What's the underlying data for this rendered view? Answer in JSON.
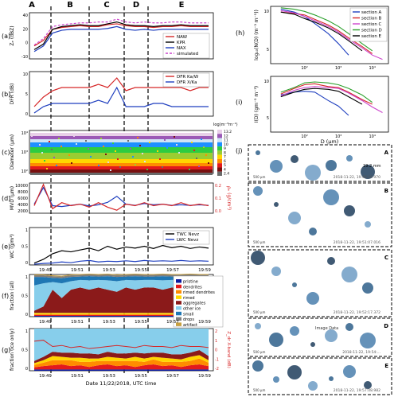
{
  "figure": {
    "section_letters": [
      "A",
      "B",
      "C",
      "D",
      "E"
    ],
    "xlabel": "Date 11/22/2018, UTC time",
    "x_ticks": [
      "19:49",
      "19:51",
      "19:53",
      "19:55",
      "19:57",
      "19:59"
    ],
    "d_label": "D (μm)",
    "photo_letters": [
      "A",
      "B",
      "C",
      "D",
      "E"
    ],
    "photo_times": [
      "2018-11-22, 19:48:29.970",
      "2018-11-22, 19:51:07.016",
      "2018-11-22, 19:52:17.372",
      "2018-11-22, 19:54:...",
      "2018-11-22, 19:57:08.982"
    ],
    "scale_label": "19.2\nmm",
    "scale_500": "500 μm",
    "image_data": "Image Data"
  },
  "chart_data": [
    {
      "panel": "(a)",
      "type": "line",
      "ylabel": "Zₑ (dBZ)",
      "yticks": [
        "40",
        "20",
        "0",
        "-10"
      ],
      "ylim": [
        -10,
        40
      ],
      "series": [
        {
          "name": "NAW",
          "color": "#d62728",
          "values": [
            4,
            10,
            22,
            24,
            25,
            26,
            25,
            25,
            27,
            28,
            26,
            25,
            25,
            24,
            25,
            25,
            26,
            25,
            25,
            25
          ]
        },
        {
          "name": "KPR",
          "color": "#000000",
          "values": [
            0,
            6,
            22,
            25,
            26,
            27,
            26,
            26,
            28,
            30,
            27,
            26,
            26,
            25,
            26,
            26,
            27,
            26,
            26,
            26
          ]
        },
        {
          "name": "NAX",
          "color": "#1f3fbf",
          "values": [
            -2,
            4,
            18,
            21,
            22,
            22,
            22,
            22,
            23,
            25,
            22,
            21,
            22,
            21,
            22,
            22,
            22,
            22,
            22,
            22
          ]
        },
        {
          "name": "simulated",
          "color": "#cc44cc",
          "values": [
            5,
            12,
            25,
            27,
            28,
            29,
            29,
            30,
            30,
            33,
            30,
            29,
            30,
            29,
            29,
            30,
            30,
            29,
            29,
            29
          ]
        }
      ]
    },
    {
      "panel": "(b)",
      "type": "line",
      "ylabel": "DFR (dB)",
      "yticks": [
        "10",
        "5",
        "0"
      ],
      "ylim": [
        0,
        14
      ],
      "series": [
        {
          "name": "DFR Ka/W",
          "color": "#d62728",
          "values": [
            3,
            6,
            8,
            9,
            9,
            9,
            9,
            10,
            9,
            12,
            8,
            9,
            9,
            9,
            9,
            9,
            9,
            8,
            9,
            9
          ]
        },
        {
          "name": "DFR X/Ka",
          "color": "#1f3fbf",
          "values": [
            1,
            3,
            4,
            4,
            4,
            4,
            4,
            5,
            4,
            9,
            3,
            3,
            3,
            4,
            4,
            3,
            3,
            3,
            3,
            3
          ]
        }
      ]
    },
    {
      "panel": "(c)",
      "type": "heatmap",
      "ylabel": "Diameter (μm)",
      "yticks": [
        "10⁴",
        "10³",
        "10²"
      ],
      "colorbar_label": "log(m⁻³m⁻¹)",
      "colorbar_ticks": [
        "13.2",
        "12",
        "11",
        "10",
        "9",
        "8",
        "7",
        "6",
        "5",
        "4",
        "2.4"
      ],
      "bands": [
        {
          "level": "13.2",
          "color": "#e8d0e8"
        },
        {
          "level": "12",
          "color": "#9b59b6"
        },
        {
          "level": "11",
          "color": "#d0e4f5"
        },
        {
          "level": "10",
          "color": "#1e90ff"
        },
        {
          "level": "9",
          "color": "#2ecc40"
        },
        {
          "level": "8",
          "color": "#9acd32"
        },
        {
          "level": "7",
          "color": "#ffd700"
        },
        {
          "level": "6",
          "color": "#ff8c00"
        },
        {
          "level": "5",
          "color": "#e31a1c"
        },
        {
          "level": "4",
          "color": "#7a1010"
        },
        {
          "level": "2.4",
          "color": "#6a6a6a"
        }
      ]
    },
    {
      "panel": "(d)",
      "type": "line",
      "ylabel": "MVD (μm)",
      "yticks": [
        "10000",
        "8000",
        "6000",
        "4000",
        "2000"
      ],
      "ylim": [
        0,
        10000
      ],
      "y2label": "ρₑ (g/cm³)",
      "y2ticks": [
        "0.2",
        "0.1",
        "0.0"
      ],
      "y2lim": [
        0,
        0.2
      ],
      "series": [
        {
          "name": "MVD",
          "color": "#1f3fbf",
          "axis": "left",
          "values": [
            3000,
            8500,
            2500,
            2200,
            2600,
            3000,
            2400,
            2800,
            3600,
            5600,
            3000,
            2600,
            3200,
            2800,
            3000,
            2600,
            2800,
            2600,
            2800,
            2600
          ]
        },
        {
          "name": "ρₑ",
          "color": "#d62728",
          "axis": "right",
          "values": [
            0.05,
            0.19,
            0.03,
            0.07,
            0.05,
            0.06,
            0.04,
            0.07,
            0.04,
            0.02,
            0.06,
            0.05,
            0.07,
            0.05,
            0.06,
            0.05,
            0.07,
            0.05,
            0.06,
            0.05
          ]
        }
      ]
    },
    {
      "panel": "(e)",
      "type": "line",
      "ylabel": "WC (g/m³)",
      "yticks": [
        "1",
        "0.5",
        "0"
      ],
      "ylim": [
        0,
        1
      ],
      "series": [
        {
          "name": "TWC Nevz",
          "color": "#000000",
          "values": [
            0.05,
            0.15,
            0.3,
            0.38,
            0.35,
            0.4,
            0.45,
            0.38,
            0.5,
            0.42,
            0.48,
            0.45,
            0.5,
            0.44,
            0.52,
            0.46,
            0.5,
            0.44,
            0.48,
            0.45
          ]
        },
        {
          "name": "LWC Nevz",
          "color": "#1f3fbf",
          "values": [
            0.02,
            0.04,
            0.05,
            0.08,
            0.06,
            0.1,
            0.12,
            0.08,
            0.1,
            0.09,
            0.11,
            0.09,
            0.12,
            0.1,
            0.11,
            0.1,
            0.12,
            0.1,
            0.11,
            0.1
          ]
        }
      ]
    },
    {
      "panel": "(f)",
      "type": "area",
      "ylabel": "fraction (all)",
      "yticks": [
        "1",
        "0.5",
        "0"
      ],
      "ylim": [
        0,
        1
      ],
      "categories": [
        "pristine",
        "dendrites",
        "rimed dendrites",
        "rimed",
        "aggregates",
        "other ice",
        "small",
        "drops",
        "artifact"
      ],
      "colors": [
        "#0a1aa0",
        "#e31a1c",
        "#ff8c00",
        "#ffd700",
        "#8b1a1a",
        "#87ceeb",
        "#1f77b4",
        "#7f7f7f",
        "#c8a040"
      ],
      "legend_position": "right"
    },
    {
      "panel": "(g)",
      "type": "area",
      "ylabel": "fraction (ice only)",
      "yticks": [
        "1",
        "0.5",
        "0"
      ],
      "ylim": [
        0,
        1
      ],
      "y2label": "Z_dr X-band (dB)",
      "y2ticks": [
        "2",
        "1",
        "0",
        "-1",
        "-2"
      ],
      "y2lim": [
        -2,
        2
      ],
      "zdr_color": "#d62728",
      "zdr_values": [
        0.8,
        0.9,
        0.3,
        0.4,
        0.2,
        0.3,
        0.1,
        0.2,
        0.3,
        0.4,
        0.3,
        0.2,
        0.4,
        0.3,
        0.3,
        0.2,
        0.4,
        0.3,
        0.3,
        0.2
      ]
    },
    {
      "panel": "(h)",
      "type": "line",
      "ylabel": "log₁₀(N(D) (m⁻³ m⁻¹))",
      "yticks": [
        "10",
        "5"
      ],
      "ylim": [
        4,
        12
      ],
      "x": [
        20,
        50,
        100,
        200,
        500,
        1000,
        2000,
        5000,
        10000,
        20000
      ],
      "xticks": [
        "10²",
        "10³",
        "10⁴"
      ],
      "series": [
        {
          "name": "section A",
          "color": "#1f3fbf",
          "values": [
            11.6,
            11.2,
            10.6,
            9.6,
            8.2,
            6.8,
            5.2,
            null,
            null,
            null
          ]
        },
        {
          "name": "section B",
          "color": "#d62728",
          "values": [
            11.2,
            11.0,
            10.8,
            10.2,
            9.4,
            8.6,
            7.6,
            6.4,
            5.4,
            null
          ]
        },
        {
          "name": "section C",
          "color": "#cc44cc",
          "values": [
            11.4,
            11.1,
            10.6,
            10.0,
            9.2,
            8.4,
            7.4,
            6.2,
            5.2,
            4.6
          ]
        },
        {
          "name": "section D",
          "color": "#2ca02c",
          "values": [
            11.8,
            11.6,
            11.3,
            10.8,
            10.0,
            9.2,
            8.2,
            6.8,
            5.8,
            null
          ]
        },
        {
          "name": "section E",
          "color": "#000000",
          "values": [
            11.2,
            10.9,
            10.3,
            9.8,
            9.0,
            8.2,
            7.2,
            5.8,
            null,
            null
          ]
        }
      ]
    },
    {
      "panel": "(i)",
      "type": "line",
      "ylabel": "I(D) (gm⁻³ m⁻³)",
      "yticks": [
        "10",
        "5"
      ],
      "ylim": [
        0,
        12
      ],
      "x": [
        20,
        50,
        100,
        200,
        500,
        1000,
        2000,
        5000,
        10000,
        20000
      ],
      "xticks": [
        "10²",
        "10³",
        "10⁴"
      ],
      "series": [
        {
          "name": "section A",
          "color": "#1f3fbf",
          "values": [
            8.0,
            8.6,
            8.8,
            8.6,
            6.8,
            5.6,
            3.6,
            null,
            null,
            null
          ]
        },
        {
          "name": "section B",
          "color": "#d62728",
          "values": [
            8.2,
            9.4,
            10.2,
            10.4,
            9.8,
            9.6,
            8.6,
            7.0,
            6.0,
            null
          ]
        },
        {
          "name": "section C",
          "color": "#cc44cc",
          "values": [
            7.8,
            9.0,
            9.6,
            9.8,
            9.6,
            9.4,
            8.4,
            6.8,
            5.4,
            4.2
          ]
        },
        {
          "name": "section D",
          "color": "#2ca02c",
          "values": [
            8.6,
            9.6,
            10.6,
            10.8,
            10.6,
            10.2,
            9.4,
            8.0,
            6.4,
            null
          ]
        },
        {
          "name": "section E",
          "color": "#000000",
          "values": [
            7.6,
            8.6,
            9.2,
            9.4,
            9.2,
            8.8,
            7.6,
            6.0,
            null,
            null
          ]
        }
      ]
    }
  ]
}
